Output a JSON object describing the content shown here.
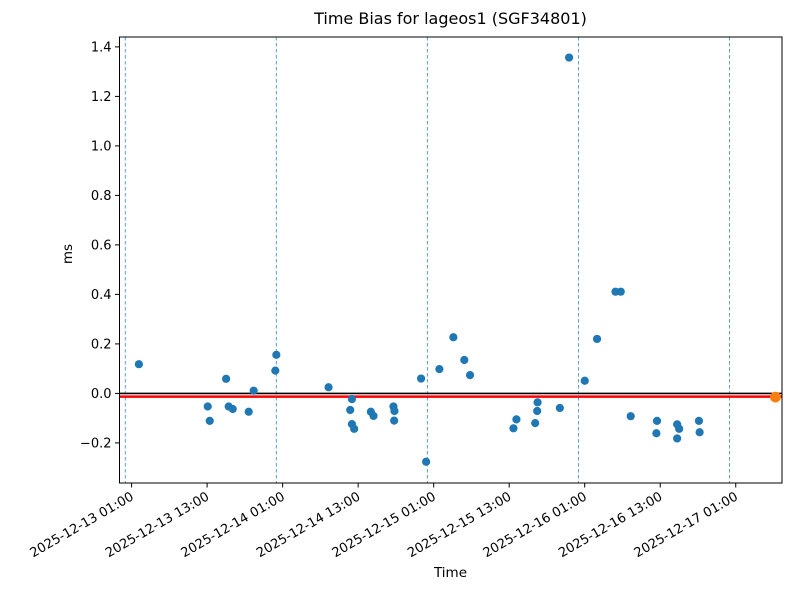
{
  "title": "Time Bias for lageos1 (SGF34801)",
  "chart_data": {
    "type": "scatter",
    "title": "Time Bias for lageos1 (SGF34801)",
    "xlabel": "Time",
    "ylabel": "ms",
    "time_origin": "2025-12-13 00:00",
    "x_unit": "hours_since_time_origin",
    "xlim_hours": [
      -0.92,
      104.35
    ],
    "ylim": [
      -0.362,
      1.44
    ],
    "grid": "vertical dashed lines at each midnight",
    "grid_hours": [
      0,
      24,
      48,
      72,
      96
    ],
    "grid_color": "#4a94c8",
    "x_ticks": [
      {
        "hour": 1,
        "label": "2025-12-13 01:00"
      },
      {
        "hour": 13,
        "label": "2025-12-13 13:00"
      },
      {
        "hour": 25,
        "label": "2025-12-14 01:00"
      },
      {
        "hour": 37,
        "label": "2025-12-14 13:00"
      },
      {
        "hour": 49,
        "label": "2025-12-15 01:00"
      },
      {
        "hour": 61,
        "label": "2025-12-15 13:00"
      },
      {
        "hour": 73,
        "label": "2025-12-16 01:00"
      },
      {
        "hour": 85,
        "label": "2025-12-16 13:00"
      },
      {
        "hour": 97,
        "label": "2025-12-17 01:00"
      }
    ],
    "y_ticks": [
      {
        "value": -0.2,
        "label": "−0.2"
      },
      {
        "value": 0.0,
        "label": "0.0"
      },
      {
        "value": 0.2,
        "label": "0.2"
      },
      {
        "value": 0.4,
        "label": "0.4"
      },
      {
        "value": 0.6,
        "label": "0.6"
      },
      {
        "value": 0.8,
        "label": "0.8"
      },
      {
        "value": 1.0,
        "label": "1.0"
      },
      {
        "value": 1.2,
        "label": "1.2"
      },
      {
        "value": 1.4,
        "label": "1.4"
      }
    ],
    "lines": [
      {
        "name": "zero-line",
        "ms": 0.0,
        "color": "#000000",
        "width": 1.6
      },
      {
        "name": "fit-line",
        "ms": -0.013,
        "color": "#ff0000",
        "width": 2.6
      }
    ],
    "series": [
      {
        "name": "time-bias-observations",
        "color": "#1f77b4",
        "marker_diameter_px": 8.2,
        "points": [
          [
            2.16,
            0.118
          ],
          [
            13.1,
            -0.053
          ],
          [
            13.42,
            -0.111
          ],
          [
            16.02,
            0.059
          ],
          [
            16.43,
            -0.053
          ],
          [
            17.07,
            -0.063
          ],
          [
            19.61,
            -0.074
          ],
          [
            20.4,
            0.011
          ],
          [
            23.84,
            0.092
          ],
          [
            24.0,
            0.156
          ],
          [
            32.3,
            0.025
          ],
          [
            35.74,
            -0.067
          ],
          [
            36.01,
            -0.023
          ],
          [
            36.01,
            -0.124
          ],
          [
            36.37,
            -0.143
          ],
          [
            39.02,
            -0.074
          ],
          [
            39.44,
            -0.091
          ],
          [
            42.61,
            -0.053
          ],
          [
            42.77,
            -0.071
          ],
          [
            42.72,
            -0.11
          ],
          [
            47.0,
            0.06
          ],
          [
            47.8,
            -0.276
          ],
          [
            49.91,
            0.098
          ],
          [
            52.13,
            0.227
          ],
          [
            53.87,
            0.135
          ],
          [
            54.78,
            0.074
          ],
          [
            61.68,
            -0.141
          ],
          [
            62.15,
            -0.105
          ],
          [
            65.13,
            -0.12
          ],
          [
            65.45,
            -0.071
          ],
          [
            65.51,
            -0.036
          ],
          [
            69.05,
            -0.059
          ],
          [
            70.52,
            1.357
          ],
          [
            73.01,
            0.051
          ],
          [
            74.96,
            0.22
          ],
          [
            77.89,
            0.411
          ],
          [
            78.73,
            0.411
          ],
          [
            80.31,
            -0.092
          ],
          [
            84.39,
            -0.161
          ],
          [
            84.49,
            -0.111
          ],
          [
            87.69,
            -0.125
          ],
          [
            88.01,
            -0.143
          ],
          [
            87.69,
            -0.182
          ],
          [
            91.15,
            -0.111
          ],
          [
            91.26,
            -0.157
          ]
        ]
      },
      {
        "name": "predicted-point",
        "color": "#ff7f0e",
        "marker_diameter_px": 10.8,
        "points": [
          [
            103.31,
            -0.015
          ]
        ]
      }
    ]
  }
}
